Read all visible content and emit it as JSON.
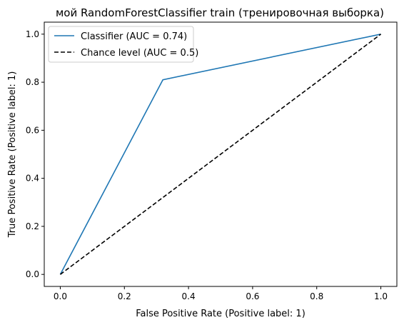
{
  "chart_data": {
    "type": "line",
    "title": "мой RandomForestClassifier train (тренировочная выборка)",
    "xlabel": "False Positive Rate (Positive label: 1)",
    "ylabel": "True Positive Rate (Positive label: 1)",
    "xlim": [
      -0.05,
      1.05
    ],
    "ylim": [
      -0.05,
      1.05
    ],
    "xticks": [
      "0.0",
      "0.2",
      "0.4",
      "0.6",
      "0.8",
      "1.0"
    ],
    "yticks": [
      "0.0",
      "0.2",
      "0.4",
      "0.6",
      "0.8",
      "1.0"
    ],
    "grid": false,
    "legend_position": "upper-left",
    "series": [
      {
        "name": "Classifier (AUC = 0.74)",
        "color": "#1f77b4",
        "style": "solid",
        "x": [
          0.0,
          0.32,
          1.0
        ],
        "y": [
          0.0,
          0.81,
          1.0
        ]
      },
      {
        "name": "Chance level (AUC = 0.5)",
        "color": "#000000",
        "style": "dashed",
        "x": [
          0.0,
          1.0
        ],
        "y": [
          0.0,
          1.0
        ]
      }
    ]
  }
}
